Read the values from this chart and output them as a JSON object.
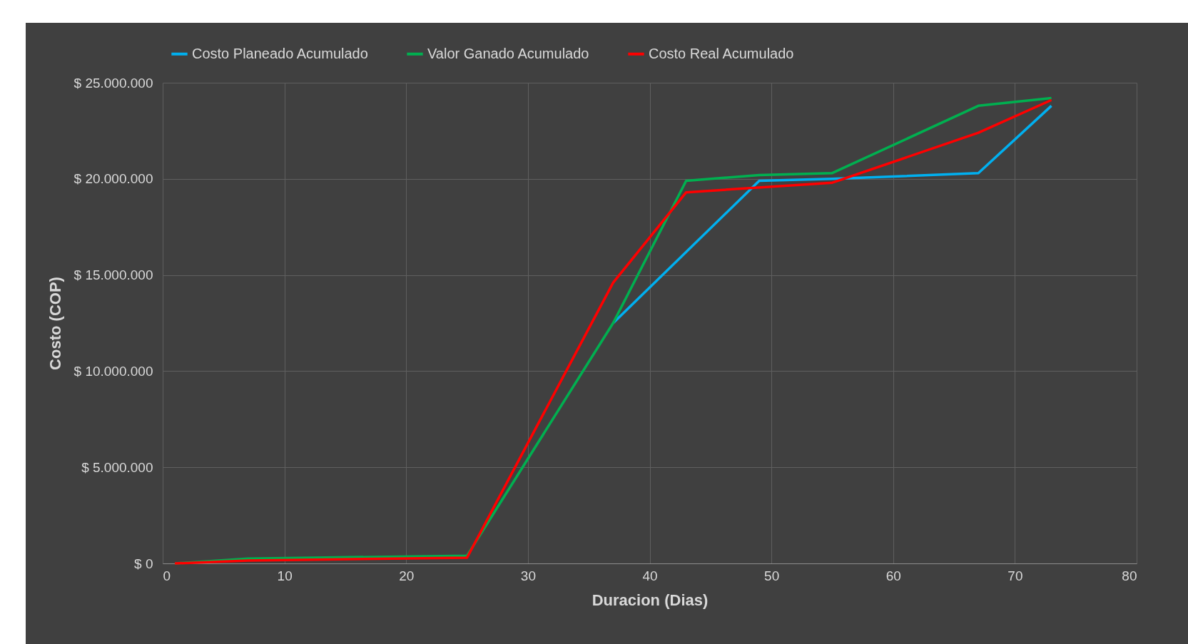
{
  "chart_data": {
    "type": "line",
    "xlabel": "Duracion (Dias)",
    "ylabel": "Costo (COP)",
    "xlim": [
      0,
      80
    ],
    "xticks": [
      0,
      10,
      20,
      30,
      40,
      50,
      60,
      70,
      80
    ],
    "ylim": [
      0,
      25000000
    ],
    "yticks": [
      {
        "value": 0,
        "label": "$ 0"
      },
      {
        "value": 5000000,
        "label": "$ 5.000.000"
      },
      {
        "value": 10000000,
        "label": "$ 10.000.000"
      },
      {
        "value": 15000000,
        "label": "$ 15.000.000"
      },
      {
        "value": 20000000,
        "label": "$ 20.000.000"
      },
      {
        "value": 25000000,
        "label": "$ 25.000.000"
      }
    ],
    "grid": true,
    "legend": "top",
    "series": [
      {
        "name": "Costo Planeado Acumulado",
        "color": "#00b0f0",
        "x": [
          37,
          49,
          55,
          67,
          73
        ],
        "values": [
          12500000,
          19900000,
          20000000,
          20300000,
          23800000
        ]
      },
      {
        "name": "Valor Ganado Acumulado",
        "color": "#00b050",
        "x": [
          1,
          7,
          25,
          37,
          43,
          49,
          55,
          67,
          73
        ],
        "values": [
          0,
          250000,
          400000,
          12500000,
          19900000,
          20200000,
          20300000,
          23800000,
          24200000
        ]
      },
      {
        "name": "Costo Real Acumulado",
        "color": "#ff0000",
        "x": [
          1,
          7,
          25,
          37,
          43,
          55,
          67,
          73
        ],
        "values": [
          0,
          150000,
          300000,
          14600000,
          19300000,
          19800000,
          22400000,
          24100000
        ]
      }
    ]
  }
}
